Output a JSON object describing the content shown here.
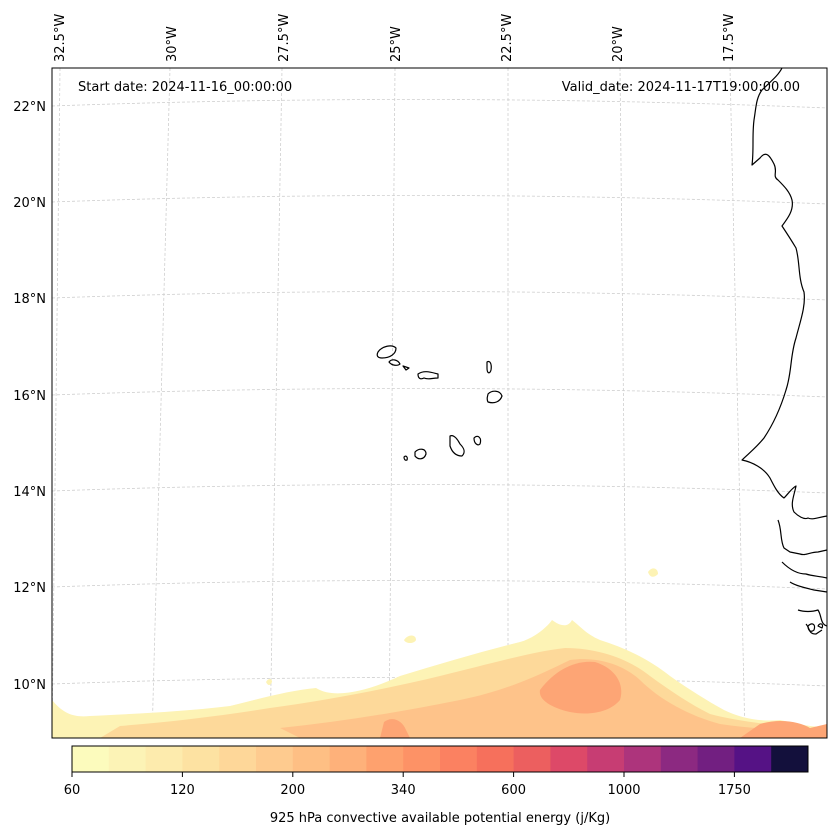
{
  "header": {
    "start_date": "Start date: 2024-11-16_00:00:00",
    "valid_date": "Valid_date: 2024-11-17T19:00:00.00"
  },
  "longitude_labels": [
    "32.5°W",
    "30°W",
    "27.5°W",
    "25°W",
    "22.5°W",
    "20°W",
    "17.5°W"
  ],
  "latitude_labels": [
    "22°N",
    "20°N",
    "18°N",
    "16°N",
    "14°N",
    "12°N",
    "10°N"
  ],
  "colorbar": {
    "label": "925 hPa convective available potential energy (j/Kg)",
    "tick_labels": [
      "60",
      "120",
      "200",
      "340",
      "600",
      "1000",
      "1750"
    ],
    "level_colors": [
      "#fcfbbd",
      "#fcf3b6",
      "#fdebad",
      "#fde2a2",
      "#fed799",
      "#fecb8f",
      "#febf84",
      "#feb17a",
      "#fea16e",
      "#fd9266",
      "#fb8161",
      "#f6705c",
      "#ec5f5f",
      "#dd4968",
      "#c73d73",
      "#ad347c",
      "#8c2981",
      "#721f81",
      "#551285",
      "#13103c"
    ]
  },
  "colors": {
    "gridline": "#cfcfcf",
    "coastline": "#000000",
    "cape_low": "#fdf3b5",
    "cape_mid": "#fdd99a",
    "cape_high": "#fda575"
  }
}
